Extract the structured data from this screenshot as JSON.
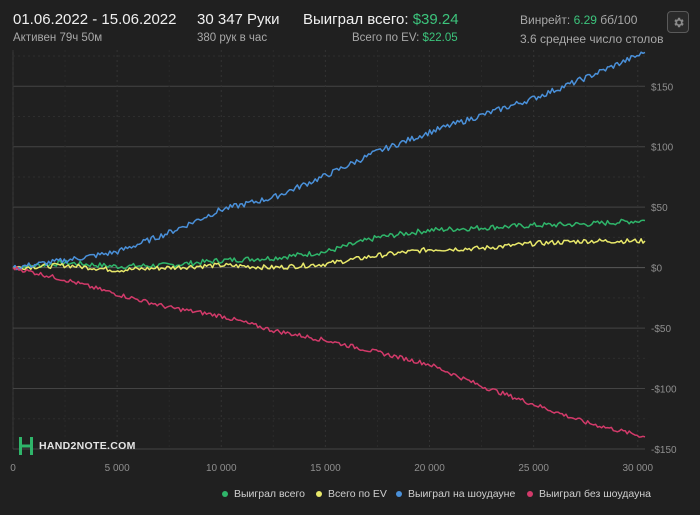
{
  "header": {
    "date_range": "01.06.2022 - 15.06.2022",
    "active_time": "Активен 79ч 50м",
    "hands": "30 347 Руки",
    "hands_per_hour": "380 рук в час",
    "won_total_label": "Выиграл всего:",
    "won_total_value": "$39.24",
    "ev_label": "Всего по EV:",
    "ev_value": "$22.05",
    "winrate_label": "Винрейт:",
    "winrate_value": "6.29",
    "winrate_unit": "бб/100",
    "avg_tables": "3.6 среднее число столов"
  },
  "logo_text": "HAND2NOTE.COM",
  "settings_icon": "gear-icon",
  "chart_data": {
    "type": "line",
    "x_ticks": [
      "0",
      "5 000",
      "10 000",
      "15 000",
      "20 000",
      "25 000",
      "30 000"
    ],
    "y_ticks": [
      "$150",
      "$100",
      "$50",
      "$0",
      "-$50",
      "-$100",
      "-$150"
    ],
    "xlim": [
      0,
      30347
    ],
    "ylim": [
      -150,
      180
    ],
    "grid": true,
    "legend_position": "bottom-right",
    "x": [
      0,
      2500,
      5000,
      7500,
      10000,
      12500,
      15000,
      17500,
      20000,
      22500,
      25000,
      27500,
      30347
    ],
    "series": [
      {
        "name": "Выиграл всего",
        "color": "#2fb56a",
        "values": [
          0,
          4,
          1,
          2,
          6,
          8,
          13,
          25,
          31,
          33,
          35,
          36,
          39
        ]
      },
      {
        "name": "Всего по EV",
        "color": "#e8e86a",
        "values": [
          0,
          2,
          -2,
          0,
          2,
          0,
          3,
          10,
          15,
          16,
          20,
          22,
          22
        ]
      },
      {
        "name": "Выиграл на шоудауне",
        "color": "#4a90d9",
        "values": [
          0,
          6,
          13,
          29,
          48,
          58,
          76,
          96,
          112,
          126,
          140,
          157,
          178
        ]
      },
      {
        "name": "Выиграл без шоудауна",
        "color": "#d23a6a",
        "values": [
          0,
          -10,
          -22,
          -33,
          -40,
          -52,
          -60,
          -70,
          -80,
          -98,
          -113,
          -128,
          -140
        ]
      }
    ]
  }
}
